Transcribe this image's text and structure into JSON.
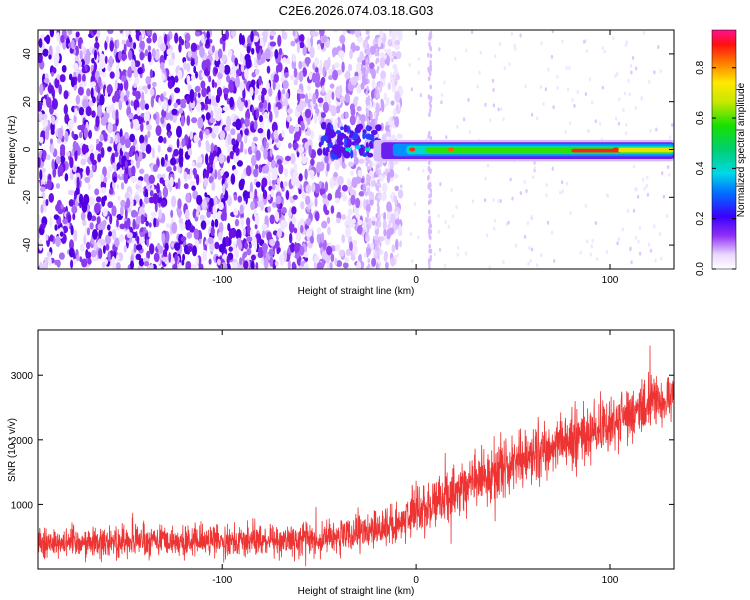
{
  "title": "C2E6.2026.074.03.18.G03",
  "chart_data": [
    {
      "type": "heatmap",
      "xlabel": "Height of straight line (km)",
      "ylabel": "Frequency (Hz)",
      "xlim": [
        -195,
        133
      ],
      "ylim": [
        -50,
        50
      ],
      "xticks": [
        -100,
        0,
        100
      ],
      "yticks": [
        -40,
        -20,
        0,
        20,
        40
      ],
      "colorbar": {
        "label": "Normalized spectral amplitude",
        "range": [
          0,
          0.95
        ],
        "ticks": [
          0.0,
          0.2,
          0.4,
          0.6,
          0.8
        ]
      },
      "features": {
        "noise_region_x": [
          -195,
          -20
        ],
        "signal_start_x": -50,
        "signal_frequency_hz": 0,
        "signal_band_hz": [
          -4,
          3
        ],
        "peak_amplitude": 0.95
      }
    },
    {
      "type": "line",
      "xlabel": "Height of straight line (km)",
      "ylabel": "SNR (10 * v/v)",
      "xlim": [
        -195,
        133
      ],
      "ylim": [
        0,
        3700
      ],
      "xticks": [
        -100,
        0,
        100
      ],
      "yticks": [
        1000,
        2000,
        3000
      ],
      "color": "#ee3333",
      "series": [
        {
          "name": "SNR",
          "x": [
            -195,
            -150,
            -100,
            -60,
            -30,
            -10,
            0,
            20,
            40,
            60,
            80,
            100,
            120,
            133
          ],
          "y_mean": [
            420,
            430,
            440,
            450,
            520,
            700,
            880,
            1200,
            1500,
            1750,
            2000,
            2250,
            2550,
            2700
          ],
          "y_spread": [
            350,
            350,
            350,
            380,
            420,
            480,
            520,
            600,
            650,
            650,
            650,
            650,
            600,
            600
          ]
        }
      ]
    }
  ]
}
